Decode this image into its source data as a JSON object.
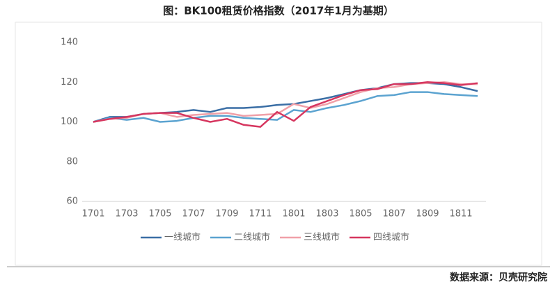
{
  "chart_data": {
    "type": "line",
    "title": "图：BK100租赁价格指数（2017年1月为基期）",
    "source": "数据来源：贝壳研究院",
    "categories": [
      "1701",
      null,
      "1703",
      null,
      "1705",
      null,
      "1707",
      null,
      "1709",
      null,
      "1711",
      null,
      "1801",
      null,
      "1803",
      null,
      "1805",
      null,
      "1807",
      null,
      "1809",
      null,
      "1811",
      null
    ],
    "series": [
      {
        "name": "一线城市",
        "color": "#3a6ea5",
        "values": [
          100,
          102.5,
          102.5,
          104,
          104.5,
          105,
          106,
          105,
          107,
          107,
          107.5,
          108.5,
          109,
          110.5,
          112,
          114,
          116,
          117,
          119,
          119.5,
          119.5,
          119,
          117.5,
          115.5
        ]
      },
      {
        "name": "二线城市",
        "color": "#5ba3d0",
        "values": [
          100,
          102,
          101,
          102,
          100,
          100.5,
          102,
          103,
          103,
          102,
          101.5,
          101,
          106,
          105,
          107,
          108.5,
          110.5,
          113,
          113.5,
          115,
          115,
          114,
          113.5,
          113
        ]
      },
      {
        "name": "三线城市",
        "color": "#f0a0a8",
        "values": [
          100,
          101.5,
          102,
          104,
          104.5,
          102.5,
          103.5,
          104,
          104.5,
          103,
          103.5,
          104,
          109,
          107,
          109,
          112,
          115,
          117,
          117.5,
          119,
          119.5,
          120,
          119,
          119
        ]
      },
      {
        "name": "四线城市",
        "color": "#d6365f",
        "values": [
          100,
          101.5,
          102.5,
          104,
          104.5,
          104.5,
          102,
          100,
          101.5,
          98.5,
          97.5,
          105,
          100.5,
          107.5,
          110.5,
          113.5,
          116,
          116.5,
          119,
          119,
          120,
          119.5,
          118.5,
          119.5
        ]
      }
    ],
    "ylim": [
      60,
      140
    ],
    "yticks": [
      60,
      80,
      100,
      120,
      140
    ],
    "grid": false,
    "legend": "bottom"
  }
}
